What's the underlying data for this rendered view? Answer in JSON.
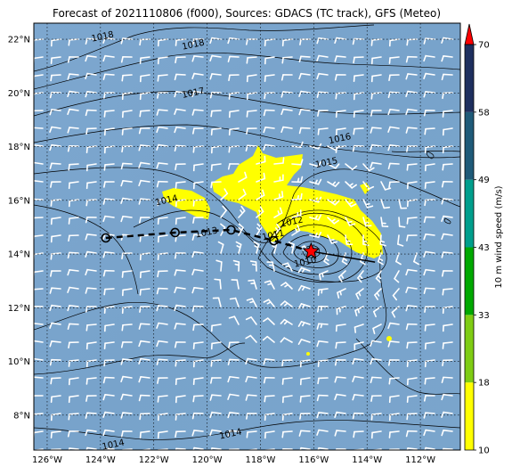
{
  "title": "Forecast of 2021110806 (f000), Sources: GDACS (TC track), GFS (Meteo)",
  "lat_ticks": [
    "22°N",
    "20°N",
    "18°N",
    "16°N",
    "14°N",
    "12°N",
    "10°N",
    "8°N"
  ],
  "lat_values": [
    22,
    20,
    18,
    16,
    14,
    12,
    10,
    8
  ],
  "lon_ticks": [
    "126°W",
    "124°W",
    "122°W",
    "120°W",
    "118°W",
    "116°W",
    "114°W",
    "112°W"
  ],
  "lon_values": [
    -126,
    -124,
    -122,
    -120,
    -118,
    -116,
    -114,
    -112
  ],
  "extent": {
    "lon": [
      -126.5,
      -110.5
    ],
    "lat": [
      6.7,
      22.6
    ]
  },
  "colorbar": {
    "label": "10 m wind speed (m/s)",
    "ticks": [
      "10",
      "18",
      "33",
      "43",
      "49",
      "58",
      "70"
    ],
    "colors": [
      "#ffff00",
      "#7fcc14",
      "#00a800",
      "#009e8c",
      "#1f5a78",
      "#1e2f5e"
    ],
    "extend_color": "#ff0000"
  },
  "isobars": [
    {
      "label": "1018",
      "lon": -123.9,
      "lat": 22.0
    },
    {
      "label": "1018",
      "lon": -120.5,
      "lat": 21.7
    },
    {
      "label": "1017",
      "lon": -120.5,
      "lat": 19.9
    },
    {
      "label": "1016",
      "lon": -115.0,
      "lat": 18.2
    },
    {
      "label": "1015",
      "lon": -115.5,
      "lat": 17.3
    },
    {
      "label": "1014",
      "lon": -121.5,
      "lat": 15.9
    },
    {
      "label": "1013",
      "lon": -120.0,
      "lat": 14.7
    },
    {
      "label": "1012",
      "lon": -116.8,
      "lat": 15.1
    },
    {
      "label": "1011",
      "lon": -117.5,
      "lat": 14.6
    },
    {
      "label": "1010",
      "lon": -116.3,
      "lat": 13.6
    },
    {
      "label": "1014",
      "lon": -123.5,
      "lat": 6.8
    },
    {
      "label": "1014",
      "lon": -119.1,
      "lat": 7.2
    }
  ],
  "track": {
    "storm_center": {
      "lon": -116.1,
      "lat": 14.1
    },
    "past_positions": [
      {
        "lon": -123.8,
        "lat": 14.6
      },
      {
        "lon": -121.2,
        "lat": 14.8
      },
      {
        "lon": -119.1,
        "lat": 14.9
      },
      {
        "lon": -117.5,
        "lat": 14.5
      }
    ],
    "forecast_end": {
      "lon": -113.7,
      "lat": 13.7
    }
  },
  "wind_areas": [
    "yellow 10-18 m/s region near storm"
  ]
}
